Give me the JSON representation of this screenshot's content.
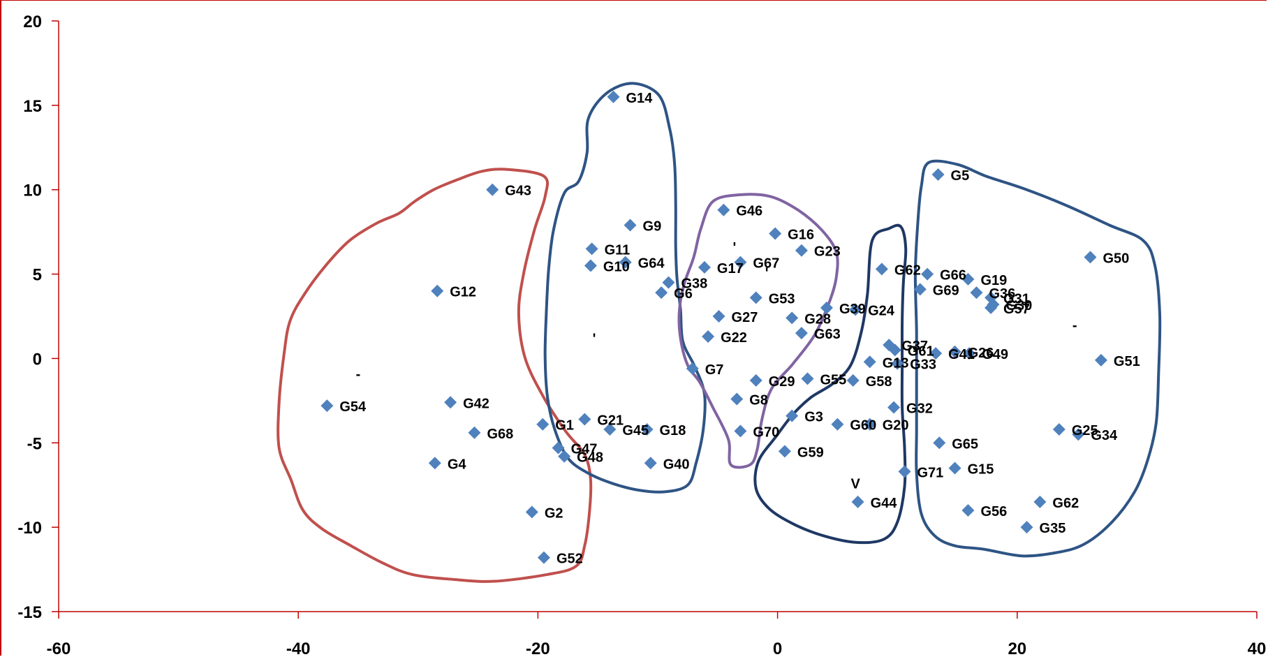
{
  "chart_data": {
    "type": "scatter",
    "title": "",
    "xlabel": "",
    "ylabel": "",
    "xlim": [
      -60,
      40
    ],
    "ylim": [
      -15,
      20
    ],
    "x_ticks": [
      -60,
      -40,
      -20,
      0,
      20,
      40
    ],
    "y_ticks": [
      20,
      15,
      10,
      5,
      0,
      -5,
      -10,
      -15
    ],
    "grid": false,
    "legend": "none",
    "marker": "diamond",
    "colors": {
      "marker": "#4f81bd",
      "axis": "#c00000",
      "cluster_red": "#c0504d",
      "cluster_blue": "#2e5484",
      "cluster_purple": "#8064a2",
      "cluster_navy": "#1f3864"
    },
    "points": [
      {
        "label": "G14",
        "x": -13.7,
        "y": 15.5
      },
      {
        "label": "G43",
        "x": -23.8,
        "y": 10.0
      },
      {
        "label": "G9",
        "x": -12.3,
        "y": 7.9
      },
      {
        "label": "G11",
        "x": -15.5,
        "y": 6.5
      },
      {
        "label": "G64",
        "x": -12.7,
        "y": 5.7
      },
      {
        "label": "G10",
        "x": -15.6,
        "y": 5.5
      },
      {
        "label": "G38",
        "x": -9.1,
        "y": 4.5
      },
      {
        "label": "G6",
        "x": -9.7,
        "y": 3.9
      },
      {
        "label": "G12",
        "x": -28.4,
        "y": 4.0
      },
      {
        "label": "G54",
        "x": -37.6,
        "y": -2.8
      },
      {
        "label": "G42",
        "x": -27.3,
        "y": -2.6
      },
      {
        "label": "G68",
        "x": -25.3,
        "y": -4.4
      },
      {
        "label": "G1",
        "x": -19.6,
        "y": -3.9
      },
      {
        "label": "G47",
        "x": -18.3,
        "y": -5.3
      },
      {
        "label": "G48",
        "x": -17.8,
        "y": -5.8
      },
      {
        "label": "G4",
        "x": -28.6,
        "y": -6.2
      },
      {
        "label": "G2",
        "x": -20.5,
        "y": -9.1
      },
      {
        "label": "G52",
        "x": -19.5,
        "y": -11.8
      },
      {
        "label": "G21",
        "x": -16.1,
        "y": -3.6
      },
      {
        "label": "G45",
        "x": -14.0,
        "y": -4.2
      },
      {
        "label": "G18",
        "x": -10.9,
        "y": -4.2
      },
      {
        "label": "G40",
        "x": -10.6,
        "y": -6.2
      },
      {
        "label": "G7",
        "x": -7.1,
        "y": -0.6
      },
      {
        "label": "G46",
        "x": -4.5,
        "y": 8.8
      },
      {
        "label": "G16",
        "x": -0.2,
        "y": 7.4
      },
      {
        "label": "G23",
        "x": 2.0,
        "y": 6.4
      },
      {
        "label": "G17",
        "x": -6.1,
        "y": 5.4
      },
      {
        "label": "G67",
        "x": -3.1,
        "y": 5.7
      },
      {
        "label": "G53",
        "x": -1.8,
        "y": 3.6
      },
      {
        "label": "G27",
        "x": -4.9,
        "y": 2.5
      },
      {
        "label": "G28",
        "x": 1.2,
        "y": 2.4
      },
      {
        "label": "G39",
        "x": 4.1,
        "y": 3.0
      },
      {
        "label": "G22",
        "x": -5.8,
        "y": 1.3
      },
      {
        "label": "G63",
        "x": 2.0,
        "y": 1.5
      },
      {
        "label": "G29",
        "x": -1.8,
        "y": -1.3
      },
      {
        "label": "G8",
        "x": -3.4,
        "y": -2.4
      },
      {
        "label": "G70",
        "x": -3.1,
        "y": -4.3
      },
      {
        "label": "G3",
        "x": 1.2,
        "y": -3.4
      },
      {
        "label": "G59",
        "x": 0.6,
        "y": -5.5
      },
      {
        "label": "G62",
        "x": 8.7,
        "y": 5.3
      },
      {
        "label": "G24",
        "x": 6.5,
        "y": 2.9
      },
      {
        "label": "G13",
        "x": 7.7,
        "y": -0.2
      },
      {
        "label": "G37",
        "x": 9.3,
        "y": 0.8
      },
      {
        "label": "G33",
        "x": 10.0,
        "y": -0.3
      },
      {
        "label": "G61",
        "x": 9.8,
        "y": 0.5
      },
      {
        "label": "G55",
        "x": 2.5,
        "y": -1.2
      },
      {
        "label": "G58",
        "x": 6.3,
        "y": -1.3
      },
      {
        "label": "G32",
        "x": 9.7,
        "y": -2.9
      },
      {
        "label": "G20",
        "x": 7.7,
        "y": -3.9
      },
      {
        "label": "G60",
        "x": 5.0,
        "y": -3.9
      },
      {
        "label": "G44",
        "x": 6.7,
        "y": -8.5
      },
      {
        "label": "G71",
        "x": 10.6,
        "y": -6.7
      },
      {
        "label": "G5",
        "x": 13.4,
        "y": 10.9
      },
      {
        "label": "G50",
        "x": 26.1,
        "y": 6.0
      },
      {
        "label": "G19",
        "x": 15.9,
        "y": 4.7
      },
      {
        "label": "G69",
        "x": 11.9,
        "y": 4.1
      },
      {
        "label": "G66",
        "x": 12.5,
        "y": 5.0
      },
      {
        "label": "G36",
        "x": 16.6,
        "y": 3.9
      },
      {
        "label": "G31",
        "x": 17.8,
        "y": 3.6
      },
      {
        "label": "G30",
        "x": 18.0,
        "y": 3.2
      },
      {
        "label": "G57",
        "x": 17.8,
        "y": 3.0
      },
      {
        "label": "G41",
        "x": 13.2,
        "y": 0.3
      },
      {
        "label": "G26",
        "x": 14.8,
        "y": 0.4
      },
      {
        "label": "G49",
        "x": 16.0,
        "y": 0.3
      },
      {
        "label": "G51",
        "x": 27.0,
        "y": -0.1
      },
      {
        "label": "G65",
        "x": 13.5,
        "y": -5.0
      },
      {
        "label": "G15",
        "x": 14.8,
        "y": -6.5
      },
      {
        "label": "G25",
        "x": 23.5,
        "y": -4.2
      },
      {
        "label": "G34",
        "x": 25.1,
        "y": -4.5
      },
      {
        "label": "G56",
        "x": 15.9,
        "y": -9.0
      },
      {
        "label": "G62",
        "x": 21.9,
        "y": -8.5
      },
      {
        "label": "G35",
        "x": 20.8,
        "y": -10.0
      }
    ],
    "clusters": [
      {
        "color_key": "cluster_red",
        "outline": [
          [
            -22.5,
            11.2
          ],
          [
            -19.5,
            10.8
          ],
          [
            -19.4,
            9.6
          ],
          [
            -20.3,
            7.6
          ],
          [
            -21.2,
            5.0
          ],
          [
            -21.6,
            2.7
          ],
          [
            -21.1,
            0.1
          ],
          [
            -19.6,
            -2.2
          ],
          [
            -17.7,
            -4.3
          ],
          [
            -16.1,
            -5.7
          ],
          [
            -15.6,
            -7.2
          ],
          [
            -15.7,
            -9.1
          ],
          [
            -16.1,
            -11.1
          ],
          [
            -16.8,
            -12.3
          ],
          [
            -19.2,
            -12.8
          ],
          [
            -23.6,
            -13.2
          ],
          [
            -26.9,
            -13.1
          ],
          [
            -30.5,
            -12.8
          ],
          [
            -33.0,
            -12.1
          ],
          [
            -35.6,
            -11.1
          ],
          [
            -38.0,
            -10.1
          ],
          [
            -39.6,
            -9.0
          ],
          [
            -40.6,
            -7.2
          ],
          [
            -41.6,
            -5.3
          ],
          [
            -41.6,
            -2.6
          ],
          [
            -41.2,
            0.2
          ],
          [
            -40.7,
            2.2
          ],
          [
            -39.5,
            3.8
          ],
          [
            -37.6,
            5.6
          ],
          [
            -35.7,
            7.0
          ],
          [
            -33.5,
            8.0
          ],
          [
            -31.6,
            8.6
          ],
          [
            -30.3,
            9.3
          ],
          [
            -28.7,
            10.0
          ],
          [
            -26.7,
            10.6
          ],
          [
            -24.6,
            11.1
          ]
        ]
      },
      {
        "color_key": "cluster_blue",
        "outline": [
          [
            -14.3,
            15.7
          ],
          [
            -12.1,
            16.3
          ],
          [
            -9.9,
            15.6
          ],
          [
            -9.0,
            13.6
          ],
          [
            -8.6,
            11.6
          ],
          [
            -8.5,
            9.2
          ],
          [
            -8.5,
            6.7
          ],
          [
            -8.4,
            4.8
          ],
          [
            -8.1,
            2.9
          ],
          [
            -7.9,
            1.0
          ],
          [
            -6.9,
            -0.5
          ],
          [
            -6.1,
            -2.1
          ],
          [
            -6.2,
            -4.2
          ],
          [
            -6.8,
            -6.2
          ],
          [
            -7.5,
            -7.5
          ],
          [
            -9.4,
            -7.9
          ],
          [
            -11.6,
            -7.8
          ],
          [
            -13.8,
            -7.4
          ],
          [
            -15.8,
            -6.8
          ],
          [
            -17.5,
            -5.9
          ],
          [
            -18.6,
            -4.2
          ],
          [
            -19.2,
            -2.3
          ],
          [
            -19.4,
            0.1
          ],
          [
            -19.3,
            2.7
          ],
          [
            -19.1,
            5.3
          ],
          [
            -18.7,
            7.6
          ],
          [
            -17.8,
            9.8
          ],
          [
            -16.6,
            10.5
          ],
          [
            -15.9,
            12.2
          ],
          [
            -15.8,
            14.2
          ]
        ]
      },
      {
        "color_key": "cluster_purple",
        "outline": [
          [
            -5.4,
            9.3
          ],
          [
            -3.2,
            9.7
          ],
          [
            -0.6,
            9.6
          ],
          [
            1.7,
            8.8
          ],
          [
            3.7,
            7.6
          ],
          [
            4.9,
            6.3
          ],
          [
            4.9,
            4.8
          ],
          [
            4.3,
            3.3
          ],
          [
            3.1,
            1.4
          ],
          [
            1.3,
            -0.3
          ],
          [
            -0.5,
            -1.8
          ],
          [
            -1.3,
            -3.6
          ],
          [
            -1.7,
            -5.4
          ],
          [
            -2.3,
            -6.3
          ],
          [
            -3.9,
            -6.3
          ],
          [
            -4.1,
            -4.8
          ],
          [
            -5.4,
            -2.9
          ],
          [
            -6.5,
            -1.4
          ],
          [
            -7.5,
            -0.4
          ],
          [
            -8.1,
            1.2
          ],
          [
            -8.2,
            2.8
          ],
          [
            -7.8,
            4.4
          ],
          [
            -7.0,
            6.0
          ],
          [
            -6.4,
            7.7
          ]
        ]
      },
      {
        "color_key": "cluster_navy",
        "outline": [
          [
            7.9,
            7.0
          ],
          [
            9.3,
            7.7
          ],
          [
            10.3,
            7.8
          ],
          [
            10.7,
            6.5
          ],
          [
            10.5,
            4.5
          ],
          [
            10.4,
            2.2
          ],
          [
            10.4,
            -0.3
          ],
          [
            10.4,
            -2.9
          ],
          [
            10.6,
            -5.3
          ],
          [
            10.6,
            -7.6
          ],
          [
            10.0,
            -9.7
          ],
          [
            8.9,
            -10.7
          ],
          [
            6.6,
            -10.9
          ],
          [
            3.8,
            -10.5
          ],
          [
            1.3,
            -9.8
          ],
          [
            -0.7,
            -8.9
          ],
          [
            -1.8,
            -7.7
          ],
          [
            -1.6,
            -6.1
          ],
          [
            -0.1,
            -4.6
          ],
          [
            1.3,
            -3.3
          ],
          [
            2.8,
            -2.3
          ],
          [
            4.6,
            -1.5
          ],
          [
            6.1,
            -0.4
          ],
          [
            7.0,
            1.6
          ],
          [
            7.5,
            3.8
          ]
        ]
      },
      {
        "color_key": "cluster_blue",
        "outline": [
          [
            12.6,
            11.6
          ],
          [
            15.0,
            11.5
          ],
          [
            17.4,
            10.8
          ],
          [
            20.4,
            10.1
          ],
          [
            24.0,
            9.1
          ],
          [
            27.7,
            7.9
          ],
          [
            30.5,
            7.0
          ],
          [
            31.5,
            5.5
          ],
          [
            31.9,
            2.6
          ],
          [
            31.8,
            -0.9
          ],
          [
            31.6,
            -3.8
          ],
          [
            30.9,
            -6.0
          ],
          [
            29.8,
            -7.9
          ],
          [
            27.9,
            -9.7
          ],
          [
            25.6,
            -11.0
          ],
          [
            23.3,
            -11.5
          ],
          [
            20.4,
            -11.7
          ],
          [
            17.2,
            -11.3
          ],
          [
            14.8,
            -11.1
          ],
          [
            13.1,
            -10.5
          ],
          [
            12.0,
            -9.2
          ],
          [
            11.6,
            -6.8
          ],
          [
            11.6,
            -4.3
          ],
          [
            11.6,
            -1.4
          ],
          [
            11.6,
            1.6
          ],
          [
            11.5,
            5.0
          ],
          [
            11.7,
            8.0
          ],
          [
            12.0,
            10.2
          ]
        ]
      }
    ],
    "stray_marks": [
      {
        "text": "-",
        "x": -35.0,
        "y": -1.2
      },
      {
        "text": "'",
        "x": -15.3,
        "y": 0.9
      },
      {
        "text": "'",
        "x": -3.6,
        "y": 6.3
      },
      {
        "text": "'",
        "x": -0.9,
        "y": 4.8
      },
      {
        "text": "V",
        "x": 6.5,
        "y": -7.7
      },
      {
        "text": "-",
        "x": 24.8,
        "y": 1.7
      }
    ]
  }
}
